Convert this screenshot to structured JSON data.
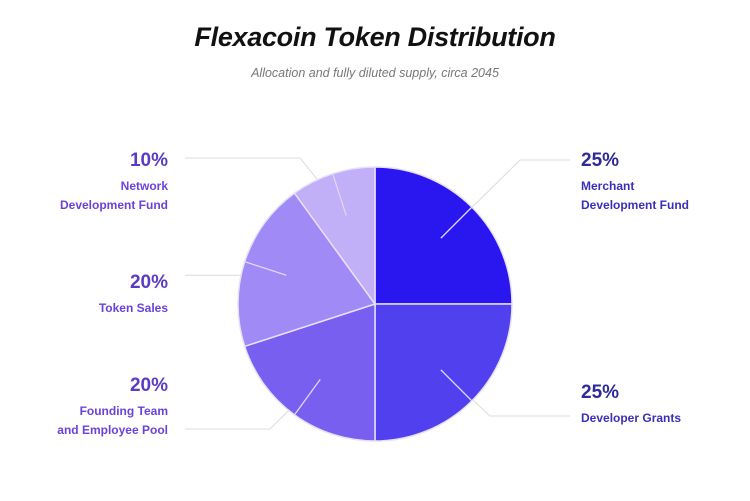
{
  "chart_data": {
    "type": "pie",
    "title": "Flexacoin Token Distribution",
    "subtitle": "Allocation and fully diluted supply, circa 2045",
    "slices": [
      {
        "label": "Merchant Development Fund",
        "label_lines": [
          "Merchant",
          "Development Fund"
        ],
        "value": 25,
        "value_label": "25%",
        "color": "#2a16ee"
      },
      {
        "label": "Developer Grants",
        "label_lines": [
          "Developer Grants"
        ],
        "value": 25,
        "value_label": "25%",
        "color": "#5040ee"
      },
      {
        "label": "Founding Team and Employee Pool",
        "label_lines": [
          "Founding Team",
          "and Employee Pool"
        ],
        "value": 20,
        "value_label": "20%",
        "color": "#795ff0"
      },
      {
        "label": "Token Sales",
        "label_lines": [
          "Token Sales"
        ],
        "value": 20,
        "value_label": "20%",
        "color": "#a08af5"
      },
      {
        "label": "Network Development Fund",
        "label_lines": [
          "Network",
          "Development Fund"
        ],
        "value": 10,
        "value_label": "10%",
        "color": "#c1aff8"
      }
    ],
    "start": "12 o'clock",
    "direction": "clockwise",
    "legend": "none (direct labels)"
  }
}
